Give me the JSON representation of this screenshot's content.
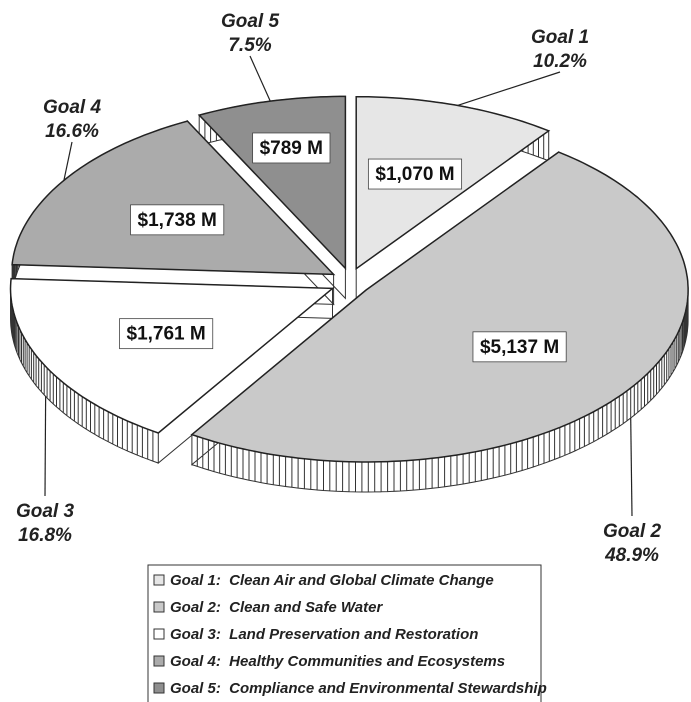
{
  "chart_data": {
    "type": "pie",
    "categories": [
      "Goal 1",
      "Goal 2",
      "Goal 3",
      "Goal 4",
      "Goal 5"
    ],
    "values": [
      10.2,
      48.9,
      16.8,
      16.6,
      7.5
    ],
    "value_labels": [
      "10.2%",
      "48.9%",
      "16.8%",
      "16.6%",
      "7.5%"
    ],
    "amounts": [
      1070,
      5137,
      1761,
      1738,
      789
    ],
    "amount_labels": [
      "$1,070 M",
      "$5,137 M",
      "$1,761 M",
      "$1,738 M",
      "$789 M"
    ],
    "colors": [
      "#e6e6e6",
      "#c9c9c9",
      "#ffffff",
      "#ababab",
      "#8f8f8f"
    ],
    "legend_labels": [
      "Goal 1:  Clean Air and Global Climate Change",
      "Goal 2:  Clean and Safe Water",
      "Goal 3:  Land Preservation and Restoration",
      "Goal 4:  Healthy Communities and Ecosystems",
      "Goal 5:  Compliance and Environmental Stewardship"
    ]
  }
}
